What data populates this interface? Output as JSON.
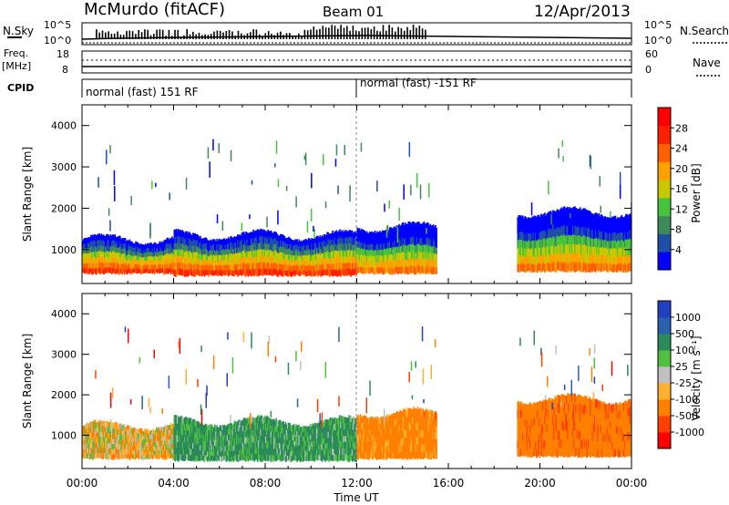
{
  "header": {
    "station": "McMurdo (fitACF)",
    "beam": "Beam 01",
    "date": "12/Apr/2013"
  },
  "status_panels": {
    "nsky_label": "N.Sky",
    "nsky_ticks": [
      "10^5",
      "10^0"
    ],
    "nsearch_label": "N.Search",
    "nsearch_ticks": [
      "10^5",
      "10^0"
    ],
    "freq_label": "Freq.",
    "freq_unit": "[MHz]",
    "freq_ticks": [
      "18",
      "8"
    ],
    "nave_label": "Nave",
    "nave_ticks": [
      "60",
      "0"
    ],
    "cpid_label": "CPID",
    "cpid_segments": [
      {
        "label": "normal (fast) 151 RF",
        "start_hour": 0
      },
      {
        "label": "normal (fast) -151 RF",
        "start_hour": 12
      }
    ]
  },
  "colors": {
    "power": [
      "#0000ff",
      "#1f4fa8",
      "#3f8a5a",
      "#46c43c",
      "#c8c800",
      "#ffa000",
      "#ff6000",
      "#ff2000",
      "#ff0000"
    ],
    "velocity": [
      "#ff0000",
      "#ff4000",
      "#ff8000",
      "#ffb030",
      "#c0c0c0",
      "#50c040",
      "#2a8a5a",
      "#2a60b0",
      "#2040c0"
    ]
  },
  "chart_data": [
    {
      "type": "heatmap",
      "panel": "power",
      "xlabel": "",
      "ylabel": "Slant Range [km]",
      "xlim": [
        0,
        24
      ],
      "ylim": [
        180,
        4500
      ],
      "yticks": [
        "1000",
        "2000",
        "3000",
        "4000"
      ],
      "colorbar_label": "Power [dB]",
      "colorbar_ticks": [
        "4",
        "8",
        "12",
        "16",
        "20",
        "24",
        "28"
      ],
      "backscatter_regions": [
        {
          "x": [
            0.0,
            4.0
          ],
          "range_km": [
            400,
            1250
          ],
          "level": 28
        },
        {
          "x": [
            4.0,
            12.0
          ],
          "range_km": [
            350,
            1350
          ],
          "level": 26
        },
        {
          "x": [
            12.0,
            15.5
          ],
          "range_km": [
            400,
            1550
          ],
          "level": 24
        },
        {
          "x": [
            19.0,
            24.0
          ],
          "range_km": [
            450,
            1900
          ],
          "level": 22
        }
      ]
    },
    {
      "type": "heatmap",
      "panel": "velocity",
      "xlabel": "Time UT",
      "ylabel": "Slant Range [km]",
      "xlim": [
        0,
        24
      ],
      "ylim": [
        180,
        4500
      ],
      "xticks": [
        "00:00",
        "04:00",
        "08:00",
        "12:00",
        "16:00",
        "20:00",
        "00:00"
      ],
      "yticks": [
        "1000",
        "2000",
        "3000",
        "4000"
      ],
      "colorbar_label": "Velocity [m s⁻¹]",
      "colorbar_ticks": [
        "1000",
        "500",
        "100",
        "25",
        "-25",
        "-100",
        "-500",
        "-1000"
      ],
      "backscatter_regions": [
        {
          "x": [
            0.0,
            4.0
          ],
          "range_km": [
            400,
            1250
          ],
          "velocity": -60
        },
        {
          "x": [
            4.0,
            12.0
          ],
          "range_km": [
            350,
            1350
          ],
          "velocity": 150
        },
        {
          "x": [
            12.0,
            15.5
          ],
          "range_km": [
            400,
            1550
          ],
          "velocity": -200
        },
        {
          "x": [
            19.0,
            24.0
          ],
          "range_km": [
            450,
            1900
          ],
          "velocity": -400
        }
      ]
    }
  ]
}
